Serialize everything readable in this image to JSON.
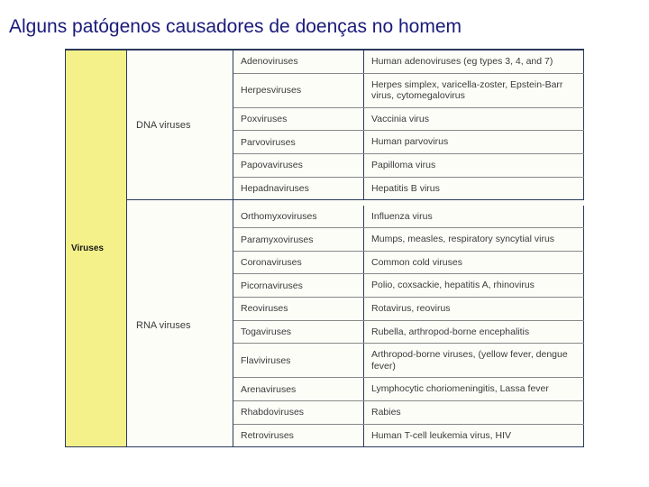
{
  "title": "Alguns patógenos causadores  de doenças no homem",
  "category": "Viruses",
  "groups": [
    {
      "name": "DNA viruses",
      "rows": [
        {
          "family": "Adenoviruses",
          "example": "Human adenoviruses (eg types 3, 4, and 7)"
        },
        {
          "family": "Herpesviruses",
          "example": "Herpes simplex, varicella-zoster, Epstein-Barr virus, cytomegalovirus"
        },
        {
          "family": "Poxviruses",
          "example": "Vaccinia virus"
        },
        {
          "family": "Parvoviruses",
          "example": "Human parvovirus"
        },
        {
          "family": "Papovaviruses",
          "example": "Papilloma virus"
        },
        {
          "family": "Hepadnaviruses",
          "example": "Hepatitis B virus"
        }
      ]
    },
    {
      "name": "RNA viruses",
      "rows": [
        {
          "family": "Orthomyxoviruses",
          "example": "Influenza virus"
        },
        {
          "family": "Paramyxoviruses",
          "example": "Mumps, measles, respiratory syncytial virus"
        },
        {
          "family": "Coronaviruses",
          "example": "Common cold viruses"
        },
        {
          "family": "Picornaviruses",
          "example": "Polio, coxsackie, hepatitis A, rhinovirus"
        },
        {
          "family": "Reoviruses",
          "example": "Rotavirus, reovirus"
        },
        {
          "family": "Togaviruses",
          "example": "Rubella, arthropod-borne encephalitis"
        },
        {
          "family": "Flaviviruses",
          "example": "Arthropod-borne viruses, (yellow fever, dengue fever)"
        },
        {
          "family": "Arenaviruses",
          "example": "Lymphocytic choriomeningitis, Lassa fever"
        },
        {
          "family": "Rhabdoviruses",
          "example": "Rabies"
        },
        {
          "family": "Retroviruses",
          "example": "Human T-cell leukemia virus, HIV"
        }
      ]
    }
  ]
}
